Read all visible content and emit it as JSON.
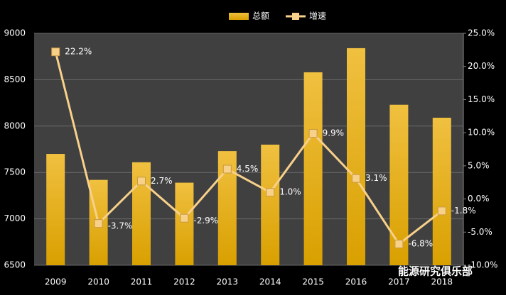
{
  "chart_data": {
    "type": "bar-line",
    "categories": [
      "2009",
      "2010",
      "2011",
      "2012",
      "2013",
      "2014",
      "2015",
      "2016",
      "2017",
      "2018"
    ],
    "series": [
      {
        "name": "总额",
        "type": "bar",
        "color": "#e6ac1c",
        "values": [
          7700,
          7420,
          7610,
          7390,
          7730,
          7800,
          8580,
          8840,
          8230,
          8090
        ]
      },
      {
        "name": "增速",
        "type": "line",
        "axis": "y2",
        "color": "#f7d08a",
        "values": [
          22.2,
          -3.7,
          2.7,
          -2.9,
          4.5,
          1.0,
          9.9,
          3.1,
          -6.8,
          -1.8
        ],
        "value_labels": [
          "22.2%",
          "-3.7%",
          "2.7%",
          "-2.9%",
          "4.5%",
          "1.0%",
          "9.9%",
          "3.1%",
          "-6.8%",
          "-1.8%"
        ]
      }
    ],
    "ylim": [
      6500,
      9000
    ],
    "yticks": [
      6500,
      7000,
      7500,
      8000,
      8500,
      9000
    ],
    "y2lim": [
      -10,
      25
    ],
    "y2ticks": [
      {
        "value": -10,
        "label": "-10.0%"
      },
      {
        "value": -5,
        "label": "-5.0%"
      },
      {
        "value": 0,
        "label": "0.0%"
      },
      {
        "value": 5,
        "label": "5.0%"
      },
      {
        "value": 10,
        "label": "10.0%"
      },
      {
        "value": 15,
        "label": "15.0%"
      },
      {
        "value": 20,
        "label": "20.0%"
      },
      {
        "value": 25,
        "label": "25.0%"
      }
    ],
    "grid": true,
    "legend": "top",
    "watermark": "能源研究俱乐部"
  }
}
